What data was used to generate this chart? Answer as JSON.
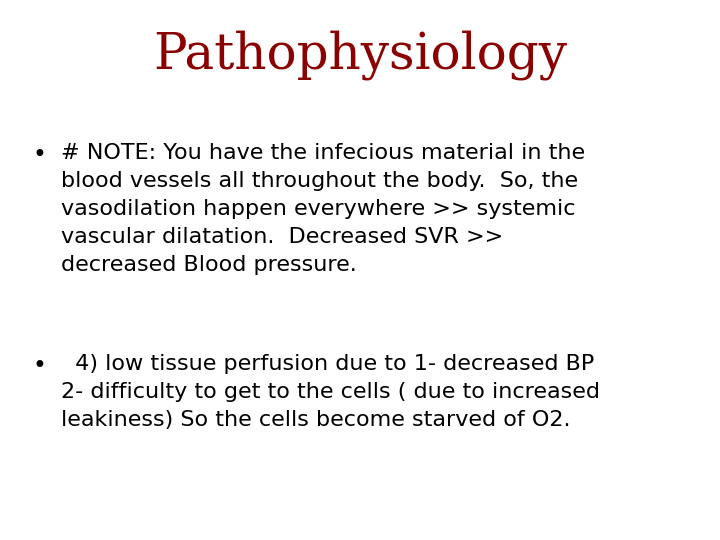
{
  "title": "Pathophysiology",
  "title_color": "#8B0000",
  "title_fontsize": 36,
  "title_font": "serif",
  "background_color": "#ffffff",
  "bullet1_line1": "# NOTE: You have the infecious material in the",
  "bullet1_line2": "blood vessels all throughout the body.  So, the",
  "bullet1_line3": "vasodilation happen everywhere >> systemic",
  "bullet1_line4": "vascular dilatation.  Decreased SVR >>",
  "bullet1_line5": "decreased Blood pressure.",
  "bullet2_line1": "  4) low tissue perfusion due to 1- decreased BP",
  "bullet2_line2": "2- difficulty to get to the cells ( due to increased",
  "bullet2_line3": "leakiness) So the cells become starved of O2.",
  "bullet_color": "#000000",
  "bullet_fontsize": 16,
  "bullet_font": "DejaVu Sans",
  "fig_width": 7.2,
  "fig_height": 5.4,
  "dpi": 100
}
